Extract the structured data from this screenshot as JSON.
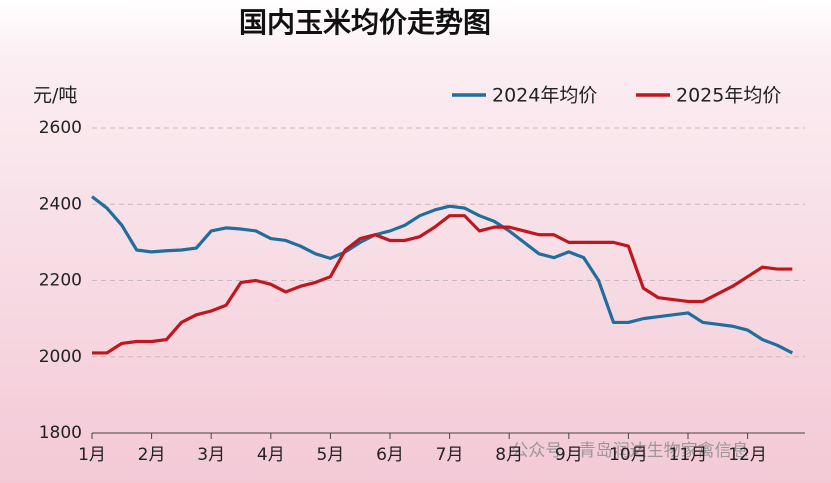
{
  "chart_data": {
    "type": "line",
    "title": "国内玉米均价走势图",
    "y_label": "元/吨",
    "watermark": "公众号 · 青岛润达生物家禽信息",
    "categories": [
      "1月",
      null,
      null,
      null,
      "2月",
      null,
      null,
      null,
      "3月",
      null,
      null,
      null,
      "4月",
      null,
      null,
      null,
      "5月",
      null,
      null,
      null,
      "6月",
      null,
      null,
      null,
      "7月",
      null,
      null,
      null,
      "8月",
      null,
      null,
      null,
      "9月",
      null,
      null,
      null,
      "10月",
      null,
      null,
      null,
      "11月",
      null,
      null,
      null,
      "12月",
      null,
      null,
      null
    ],
    "series": [
      {
        "name": "2024年均价",
        "color": "#1f6e9c",
        "values": [
          2420,
          2390,
          2345,
          2280,
          2275,
          2278,
          2280,
          2285,
          2330,
          2338,
          2335,
          2330,
          2310,
          2305,
          2290,
          2270,
          2258,
          2275,
          2300,
          2320,
          2330,
          2345,
          2370,
          2385,
          2395,
          2390,
          2370,
          2355,
          2330,
          2300,
          2270,
          2260,
          2275,
          2260,
          2200,
          2090,
          2090,
          2100,
          2105,
          2110,
          2115,
          2090,
          2085,
          2080,
          2070,
          2045,
          2030,
          2010
        ]
      },
      {
        "name": "2025年均价",
        "color": "#c0171e",
        "values": [
          2010,
          2010,
          2035,
          2040,
          2040,
          2045,
          2090,
          2110,
          2120,
          2135,
          2195,
          2200,
          2190,
          2170,
          2185,
          2195,
          2210,
          2280,
          2310,
          2320,
          2305,
          2305,
          2315,
          2340,
          2370,
          2370,
          2330,
          2340,
          2340,
          2330,
          2320,
          2320,
          2300,
          2300,
          2300,
          2300,
          2290,
          2180,
          2155,
          2150,
          2145,
          2145,
          2165,
          2185,
          2210,
          2235,
          2230,
          2230
        ]
      }
    ],
    "ylim": [
      1800,
      2600
    ],
    "yticks": [
      1800,
      2000,
      2200,
      2400,
      2600
    ],
    "grid": true,
    "legend": "top-right"
  }
}
